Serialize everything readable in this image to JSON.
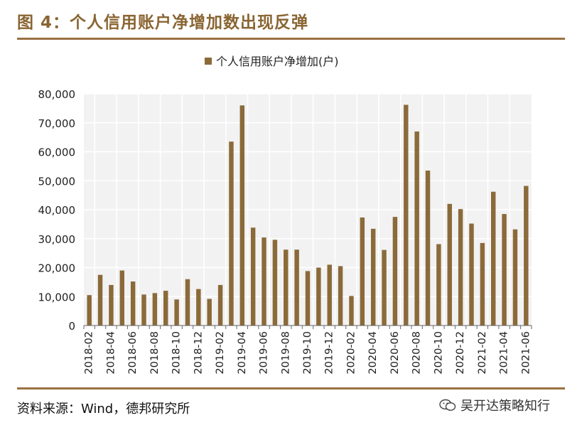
{
  "figure": {
    "title": "图 4：个人信用账户净增加数出现反弹",
    "source": "资料来源：Wind，德邦研究所",
    "watermark": "吴开达策略知行"
  },
  "colors": {
    "bar": "#8B6A3A",
    "rule": "#9a7142",
    "title": "#8a6533",
    "plot_bg": "#f2f2f2",
    "grid": "#ffffff"
  },
  "chart_data": {
    "type": "bar",
    "title": "",
    "legend": [
      "个人信用账户净增加(户)"
    ],
    "legend_position": "top-center",
    "xlabel": "",
    "ylabel": "",
    "ylim": [
      0,
      80000
    ],
    "yticks": [
      0,
      10000,
      20000,
      30000,
      40000,
      50000,
      60000,
      70000,
      80000
    ],
    "ytick_labels": [
      "0",
      "10,000",
      "20,000",
      "30,000",
      "40,000",
      "50,000",
      "60,000",
      "70,000",
      "80,000"
    ],
    "x_tick_labels": [
      "2018-02",
      "2018-04",
      "2018-06",
      "2018-08",
      "2018-10",
      "2018-12",
      "2019-02",
      "2019-04",
      "2019-06",
      "2019-08",
      "2019-10",
      "2019-12",
      "2020-02",
      "2020-04",
      "2020-06",
      "2020-08",
      "2020-10",
      "2020-12",
      "2021-02",
      "2021-04",
      "2021-06"
    ],
    "categories": [
      "2018-02",
      "2018-03",
      "2018-04",
      "2018-05",
      "2018-06",
      "2018-07",
      "2018-08",
      "2018-09",
      "2018-10",
      "2018-11",
      "2018-12",
      "2019-01",
      "2019-02",
      "2019-03",
      "2019-04",
      "2019-05",
      "2019-06",
      "2019-07",
      "2019-08",
      "2019-09",
      "2019-10",
      "2019-11",
      "2019-12",
      "2020-01",
      "2020-02",
      "2020-03",
      "2020-04",
      "2020-05",
      "2020-06",
      "2020-07",
      "2020-08",
      "2020-09",
      "2020-10",
      "2020-11",
      "2020-12",
      "2021-01",
      "2021-02",
      "2021-03",
      "2021-04",
      "2021-05",
      "2021-06"
    ],
    "series": [
      {
        "name": "个人信用账户净增加(户)",
        "values": [
          10500,
          17500,
          14000,
          19000,
          15200,
          10700,
          11200,
          12000,
          9000,
          16000,
          12600,
          9200,
          14000,
          63500,
          76000,
          33800,
          30400,
          29600,
          26200,
          26200,
          18800,
          20000,
          21000,
          20500,
          10200,
          37300,
          33400,
          26100,
          37500,
          76200,
          67000,
          53500,
          28100,
          42000,
          40200,
          35200,
          28500,
          46200,
          38500,
          33200,
          48200
        ]
      }
    ]
  }
}
